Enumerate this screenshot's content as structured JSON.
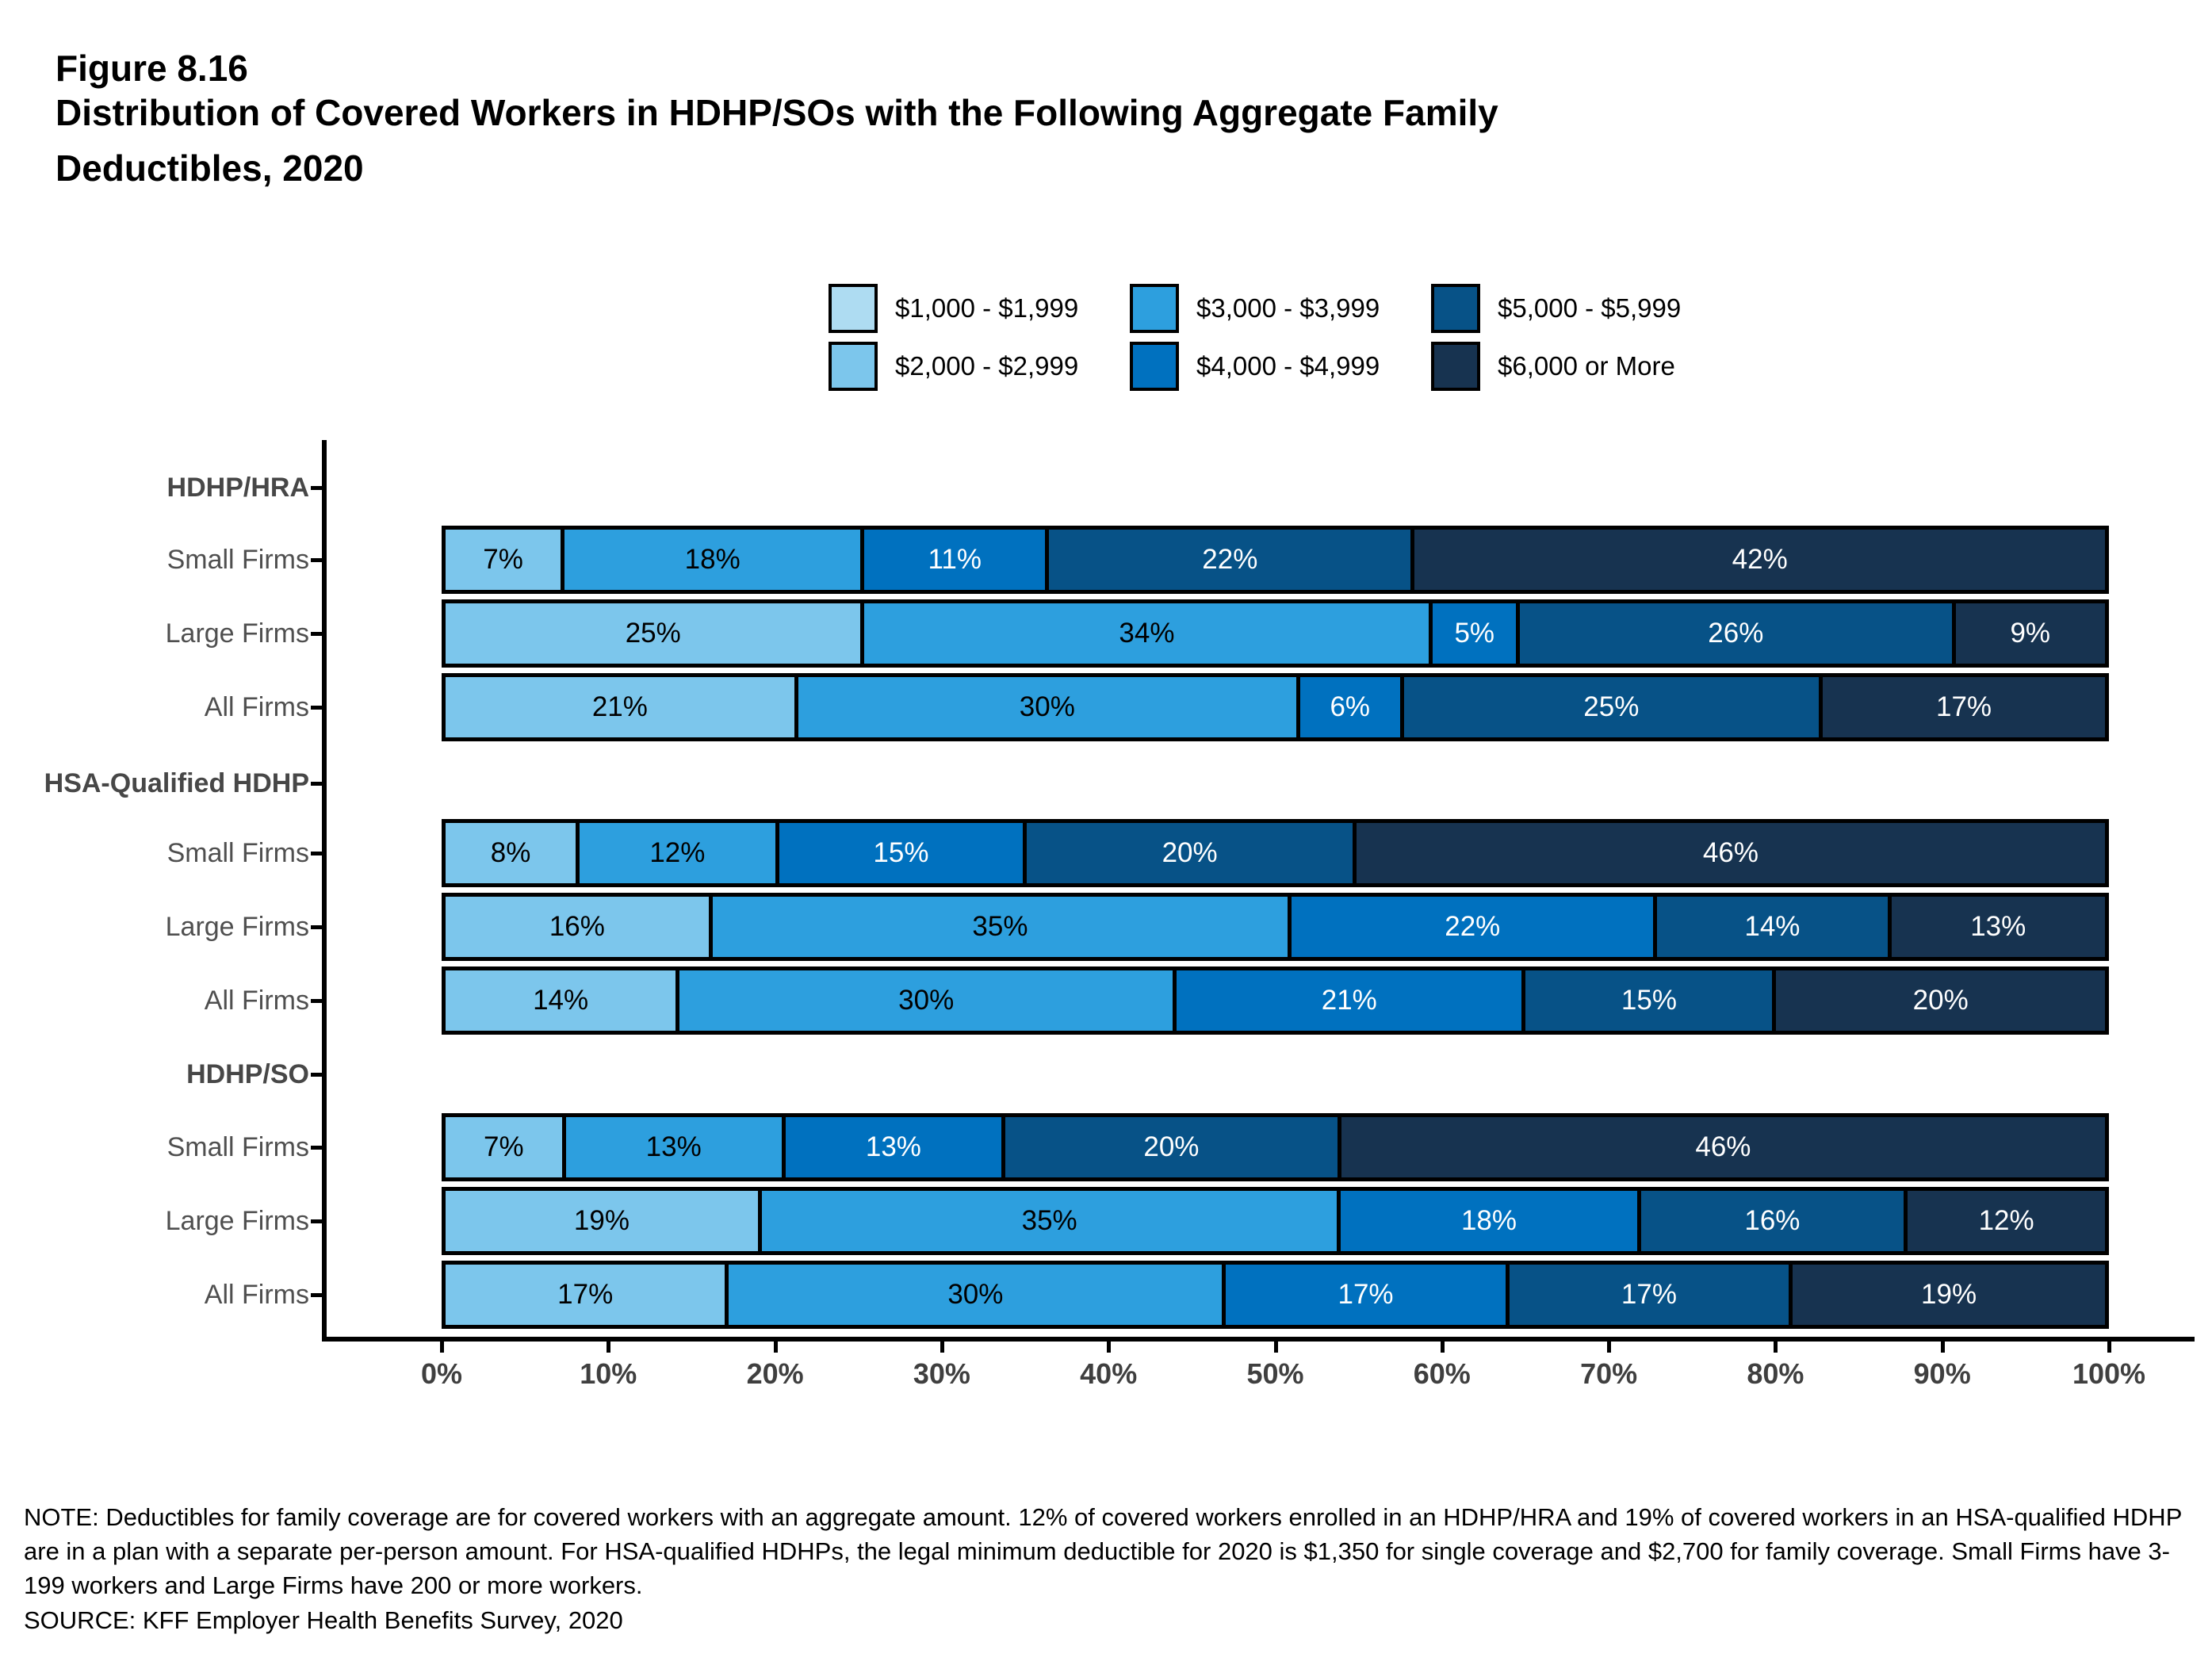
{
  "header": {
    "figure_number": "Figure 8.16",
    "title_line1": "Distribution of Covered Workers in HDHP/SOs with the Following Aggregate Family",
    "title_line2": "Deductibles, 2020"
  },
  "chart_data": {
    "type": "bar",
    "variant": "horizontal-stacked-percent",
    "title": "Figure 8.16 Distribution of Covered Workers in HDHP/SOs with the Following Aggregate Family Deductibles, 2020",
    "legend_position": "top",
    "grid": false,
    "series_labels": [
      "$1,000 - $1,999",
      "$2,000 - $2,999",
      "$3,000 - $3,999",
      "$4,000 - $4,999",
      "$5,000 - $5,999",
      "$6,000 or More"
    ],
    "series_colors": [
      "#aedcf2",
      "#7cc6ec",
      "#2d9fde",
      "#0071bf",
      "#075287",
      "#173350"
    ],
    "x_axis": {
      "min": 0,
      "max": 100,
      "tick_labels": [
        "0%",
        "10%",
        "20%",
        "30%",
        "40%",
        "50%",
        "60%",
        "70%",
        "80%",
        "90%",
        "100%"
      ]
    },
    "groups": [
      {
        "name": "HDHP/HRA",
        "rows": [
          {
            "label": "Small Firms",
            "values": [
              0,
              7,
              18,
              11,
              22,
              42
            ]
          },
          {
            "label": "Large Firms",
            "values": [
              0,
              25,
              34,
              5,
              26,
              9
            ]
          },
          {
            "label": "All Firms",
            "values": [
              0,
              21,
              30,
              6,
              25,
              17
            ]
          }
        ]
      },
      {
        "name": "HSA-Qualified HDHP",
        "rows": [
          {
            "label": "Small Firms",
            "values": [
              0,
              8,
              12,
              15,
              20,
              46
            ]
          },
          {
            "label": "Large Firms",
            "values": [
              0,
              16,
              35,
              22,
              14,
              13
            ]
          },
          {
            "label": "All Firms",
            "values": [
              0,
              14,
              30,
              21,
              15,
              20
            ]
          }
        ]
      },
      {
        "name": "HDHP/SO",
        "rows": [
          {
            "label": "Small Firms",
            "values": [
              0,
              7,
              13,
              13,
              20,
              46
            ]
          },
          {
            "label": "Large Firms",
            "values": [
              0,
              19,
              35,
              18,
              16,
              12
            ]
          },
          {
            "label": "All Firms",
            "values": [
              0,
              17,
              30,
              17,
              17,
              19
            ]
          }
        ]
      }
    ],
    "value_label_suffix": "%"
  },
  "footer": {
    "note": "NOTE: Deductibles for family coverage are for covered workers with an aggregate amount. 12% of covered workers enrolled in an HDHP/HRA and 19% of covered workers in an HSA-qualified HDHP are in a plan with a separate per-person amount. For HSA-qualified HDHPs, the legal minimum deductible for 2020 is $1,350 for single coverage and $2,700 for family coverage. Small Firms have 3-199 workers and Large Firms have 200 or more workers.",
    "source": "SOURCE: KFF Employer Health Benefits Survey, 2020"
  }
}
